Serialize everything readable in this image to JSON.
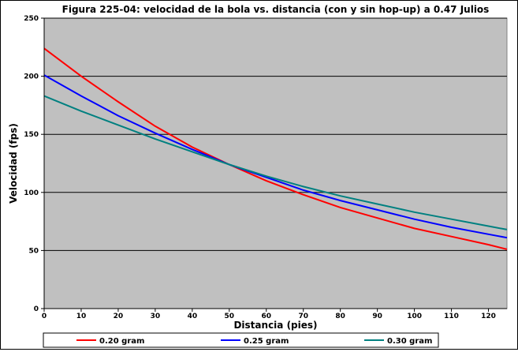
{
  "chart_data": {
    "type": "line",
    "title": "Figura 225-04: velocidad de la bola vs. distancia (con y sin hop-up) a 0.47 Julios",
    "xlabel": "Distancia (pies)",
    "ylabel": "Velocidad (fps)",
    "xlim": [
      0,
      125
    ],
    "ylim": [
      0,
      250
    ],
    "xticks": [
      0,
      10,
      20,
      30,
      40,
      50,
      60,
      70,
      80,
      90,
      100,
      110,
      120
    ],
    "yticks": [
      0,
      50,
      100,
      150,
      200,
      250
    ],
    "grid": "horizontal major",
    "plot_background": "#C0C0C0",
    "legend_position": "bottom",
    "x": [
      0,
      10,
      20,
      30,
      40,
      50,
      60,
      70,
      80,
      90,
      100,
      110,
      120,
      125
    ],
    "series": [
      {
        "name": "0.20 gram",
        "color": "#FF0000",
        "values": [
          224,
          200,
          178,
          157,
          139,
          124,
          110,
          98,
          87,
          78,
          69,
          62,
          55,
          51
        ]
      },
      {
        "name": "0.25 gram",
        "color": "#0000FF",
        "values": [
          201,
          183,
          166,
          151,
          137,
          124,
          113,
          102,
          93,
          85,
          77,
          70,
          64,
          61
        ]
      },
      {
        "name": "0.30 gram",
        "color": "#008080",
        "values": [
          183,
          170,
          158,
          146,
          135,
          124,
          114,
          105,
          97,
          90,
          83,
          77,
          71,
          68
        ]
      }
    ]
  }
}
